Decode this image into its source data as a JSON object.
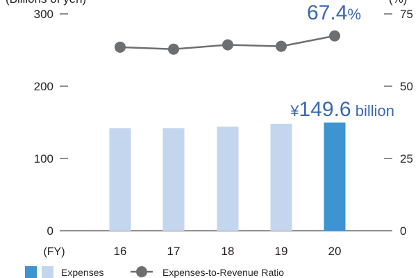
{
  "chart_data": {
    "type": "bar",
    "categories": [
      "16",
      "17",
      "18",
      "19",
      "20"
    ],
    "x_axis_prefix": "(FY)",
    "left_axis": {
      "unit_label": "(Billions of yen)",
      "ticks": [
        0,
        100,
        200,
        300
      ],
      "ylim": [
        0,
        300
      ]
    },
    "right_axis": {
      "unit_label": "(%)",
      "ticks": [
        0,
        25,
        50,
        75
      ],
      "ylim": [
        0,
        75
      ]
    },
    "series": [
      {
        "name": "Expenses",
        "type": "bar",
        "axis": "left",
        "values": [
          142,
          142,
          144,
          148,
          149.6
        ]
      },
      {
        "name": "Expenses-to-Revenue Ratio",
        "type": "line",
        "axis": "right",
        "values": [
          63.5,
          62.8,
          64.3,
          63.8,
          67.4
        ]
      }
    ],
    "colors": {
      "bar": "#c3d6ee",
      "bar_highlight": "#3e94d0",
      "line": "#6d6e70",
      "callout": "#3a68ae"
    },
    "callouts": {
      "ratio": {
        "value": "67.4",
        "unit": "%"
      },
      "expenses": {
        "prefix": "¥",
        "value": "149.6",
        "unit": " billion"
      }
    },
    "legend": {
      "bar_label": "Expenses",
      "line_label": "Expenses-to-Revenue Ratio"
    }
  }
}
